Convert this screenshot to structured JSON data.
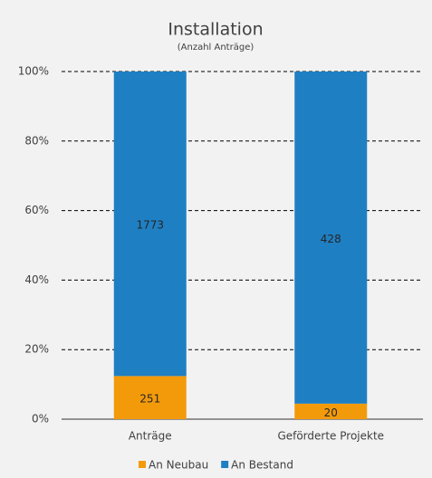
{
  "chart_data": {
    "type": "bar",
    "stacking": "percent",
    "title": "Installation",
    "subtitle": "(Anzahl Anträge)",
    "categories": [
      "Anträge",
      "Geförderte Projekte"
    ],
    "series": [
      {
        "name": "An Neubau",
        "color": "#f39a0b",
        "values": [
          251,
          20
        ]
      },
      {
        "name": "An Bestand",
        "color": "#1f7fc3",
        "values": [
          1773,
          428
        ]
      }
    ],
    "ylim": [
      0,
      100
    ],
    "yticks": [
      {
        "value": 0,
        "label": "0%"
      },
      {
        "value": 20,
        "label": "20%"
      },
      {
        "value": 40,
        "label": "40%"
      },
      {
        "value": 60,
        "label": "60%"
      },
      {
        "value": 80,
        "label": "80%"
      },
      {
        "value": 100,
        "label": "100%"
      }
    ],
    "grid": true,
    "legend": "bottom"
  }
}
